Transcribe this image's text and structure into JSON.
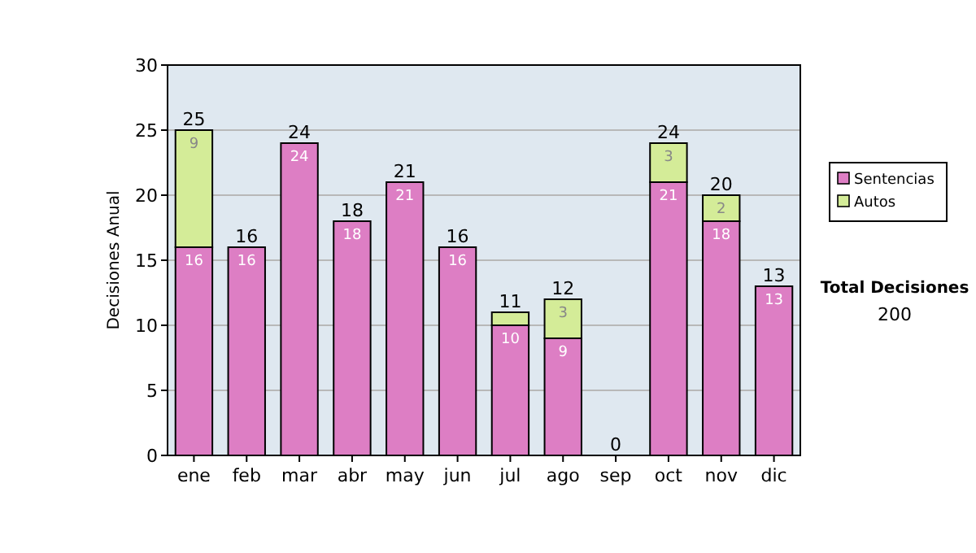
{
  "chart_data": {
    "type": "bar",
    "stacked": true,
    "ylabel": "Decisiones Anual",
    "categories": [
      "ene",
      "feb",
      "mar",
      "abr",
      "may",
      "jun",
      "jul",
      "ago",
      "sep",
      "oct",
      "nov",
      "dic"
    ],
    "series": [
      {
        "name": "Sentencias",
        "color": "#dd7ec4",
        "values": [
          16,
          16,
          24,
          18,
          21,
          16,
          10,
          9,
          0,
          21,
          18,
          13
        ],
        "value_labels": [
          "16",
          "16",
          "24",
          "18",
          "21",
          "16",
          "10",
          "9",
          null,
          "21",
          "18",
          "13"
        ]
      },
      {
        "name": "Autos",
        "color": "#d4ec98",
        "values": [
          9,
          0,
          0,
          0,
          0,
          0,
          1,
          3,
          0,
          3,
          2,
          0
        ],
        "value_labels": [
          "9",
          null,
          null,
          null,
          null,
          null,
          null,
          "3",
          null,
          "3",
          "2",
          null
        ]
      }
    ],
    "totals": [
      "25",
      "16",
      "24",
      "18",
      "21",
      "16",
      "11",
      "12",
      "0",
      "24",
      "20",
      "13"
    ],
    "ylim": [
      0,
      30
    ],
    "yticks": [
      0,
      5,
      10,
      15,
      20,
      25,
      30
    ],
    "grid": "y",
    "legend": "right",
    "annotations": [
      "Total Decisiones",
      "200"
    ]
  }
}
